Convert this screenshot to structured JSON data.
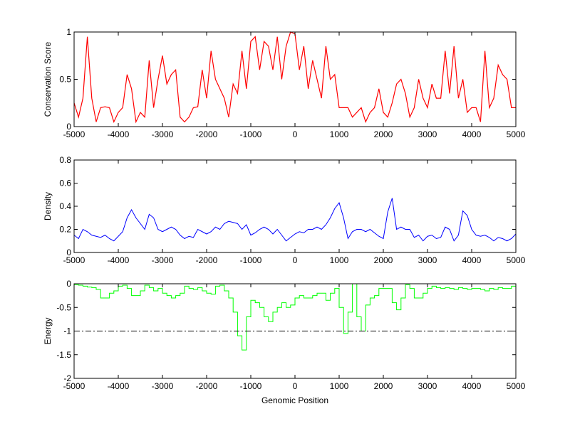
{
  "chart_data": [
    {
      "type": "line",
      "ylabel": "Conservation Score",
      "xlabel": "",
      "xlim": [
        -5000,
        5000
      ],
      "ylim": [
        0,
        1
      ],
      "xticks": [
        -5000,
        -4000,
        -3000,
        -2000,
        -1000,
        0,
        1000,
        2000,
        3000,
        4000,
        5000
      ],
      "yticks": [
        0,
        0.5,
        1
      ],
      "color": "#ff0000",
      "x_start": -5000,
      "x_step": 100,
      "values": [
        0.25,
        0.1,
        0.3,
        0.95,
        0.3,
        0.05,
        0.2,
        0.21,
        0.2,
        0.05,
        0.15,
        0.2,
        0.55,
        0.4,
        0.05,
        0.15,
        0.1,
        0.7,
        0.2,
        0.5,
        0.75,
        0.45,
        0.55,
        0.6,
        0.1,
        0.05,
        0.1,
        0.2,
        0.21,
        0.6,
        0.3,
        0.8,
        0.5,
        0.4,
        0.3,
        0.1,
        0.45,
        0.35,
        0.8,
        0.4,
        0.9,
        0.95,
        0.6,
        0.9,
        0.85,
        0.6,
        0.95,
        0.5,
        0.85,
        1.0,
        0.98,
        0.6,
        0.85,
        0.4,
        0.7,
        0.5,
        0.3,
        0.85,
        0.5,
        0.55,
        0.2,
        0.2,
        0.2,
        0.1,
        0.15,
        0.2,
        0.05,
        0.15,
        0.2,
        0.4,
        0.15,
        0.1,
        0.25,
        0.45,
        0.5,
        0.35,
        0.1,
        0.2,
        0.5,
        0.3,
        0.2,
        0.45,
        0.3,
        0.3,
        0.8,
        0.35,
        0.85,
        0.3,
        0.5,
        0.15,
        0.2,
        0.2,
        0.05,
        0.8,
        0.2,
        0.3,
        0.65,
        0.55,
        0.5,
        0.2,
        0.2
      ]
    },
    {
      "type": "line",
      "ylabel": "Density",
      "xlabel": "",
      "xlim": [
        -5000,
        5000
      ],
      "ylim": [
        0,
        0.8
      ],
      "xticks": [
        -5000,
        -4000,
        -3000,
        -2000,
        -1000,
        0,
        1000,
        2000,
        3000,
        4000,
        5000
      ],
      "yticks": [
        0,
        0.2,
        0.4,
        0.6,
        0.8
      ],
      "color": "#0000ff",
      "x_start": -5000,
      "x_step": 100,
      "values": [
        0.15,
        0.12,
        0.2,
        0.18,
        0.15,
        0.14,
        0.13,
        0.15,
        0.12,
        0.1,
        0.14,
        0.18,
        0.3,
        0.37,
        0.3,
        0.25,
        0.2,
        0.33,
        0.3,
        0.2,
        0.18,
        0.2,
        0.22,
        0.2,
        0.15,
        0.12,
        0.14,
        0.13,
        0.2,
        0.18,
        0.16,
        0.18,
        0.22,
        0.2,
        0.25,
        0.27,
        0.26,
        0.25,
        0.2,
        0.24,
        0.15,
        0.17,
        0.2,
        0.22,
        0.2,
        0.16,
        0.2,
        0.15,
        0.1,
        0.13,
        0.16,
        0.18,
        0.17,
        0.2,
        0.2,
        0.22,
        0.2,
        0.24,
        0.3,
        0.38,
        0.43,
        0.3,
        0.12,
        0.18,
        0.2,
        0.2,
        0.18,
        0.2,
        0.17,
        0.14,
        0.12,
        0.35,
        0.47,
        0.2,
        0.22,
        0.2,
        0.2,
        0.13,
        0.15,
        0.1,
        0.14,
        0.15,
        0.12,
        0.13,
        0.22,
        0.2,
        0.1,
        0.15,
        0.36,
        0.32,
        0.2,
        0.15,
        0.14,
        0.15,
        0.13,
        0.1,
        0.13,
        0.12,
        0.1,
        0.12,
        0.16
      ]
    },
    {
      "type": "line",
      "ylabel": "Energy",
      "xlabel": "Genomic Position",
      "xlim": [
        -5000,
        5000
      ],
      "ylim": [
        -2,
        0
      ],
      "xticks": [
        -5000,
        -4000,
        -3000,
        -2000,
        -1000,
        0,
        1000,
        2000,
        3000,
        4000,
        5000
      ],
      "yticks": [
        -2,
        -1.5,
        -1,
        -0.5,
        0
      ],
      "color": "#00ff00",
      "threshold": -1,
      "x_start": -5000,
      "x_step": 100,
      "values": [
        -0.02,
        -0.03,
        -0.05,
        -0.07,
        -0.08,
        -0.12,
        -0.3,
        -0.3,
        -0.2,
        -0.15,
        -0.05,
        -0.03,
        -0.1,
        -0.25,
        -0.25,
        -0.15,
        -0.03,
        -0.08,
        -0.15,
        -0.1,
        -0.2,
        -0.25,
        -0.3,
        -0.25,
        -0.2,
        -0.05,
        -0.1,
        -0.12,
        -0.08,
        -0.15,
        -0.2,
        -0.22,
        -0.05,
        -0.03,
        -0.15,
        -0.3,
        -0.6,
        -1.1,
        -1.4,
        -0.7,
        -0.35,
        -0.4,
        -0.5,
        -0.7,
        -0.8,
        -0.6,
        -0.5,
        -0.4,
        -0.5,
        -0.45,
        -0.3,
        -0.25,
        -0.3,
        -0.3,
        -0.25,
        -0.2,
        -0.2,
        -0.35,
        -0.2,
        -0.1,
        -0.5,
        -1.05,
        -0.6,
        0,
        -0.7,
        -1.0,
        -0.45,
        -0.3,
        -0.25,
        -0.1,
        -0.1,
        -0.1,
        -0.4,
        -0.55,
        -0.3,
        -0.02,
        -0.1,
        -0.3,
        -0.3,
        -0.2,
        -0.1,
        -0.05,
        -0.08,
        -0.1,
        -0.08,
        -0.1,
        -0.12,
        -0.08,
        -0.1,
        -0.12,
        -0.1,
        -0.1,
        -0.12,
        -0.15,
        -0.1,
        -0.12,
        -0.08,
        -0.1,
        -0.1,
        -0.05,
        -0.03
      ]
    }
  ]
}
